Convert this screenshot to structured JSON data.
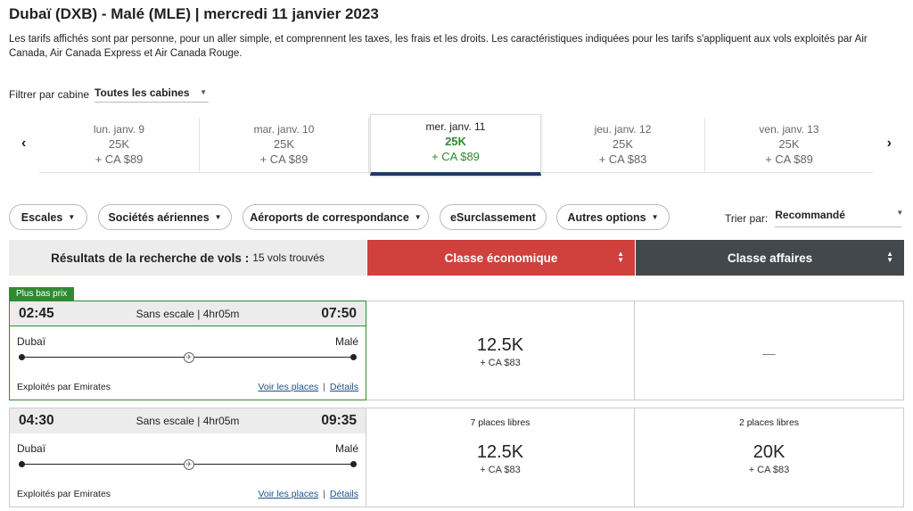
{
  "title": "Dubaï (DXB) - Malé (MLE)  |  mercredi 11 janvier 2023",
  "description": "Les tarifs affichés sont par personne, pour un aller simple, et comprennent les taxes, les frais et les droits. Les caractéristiques indiquées pour les tarifs s'appliquent aux vols exploités par Air Canada, Air Canada Express et Air Canada Rouge.",
  "filter": {
    "label": "Filtrer par cabine",
    "value": "Toutes les cabines"
  },
  "dates": [
    {
      "date": "lun. janv. 9",
      "points": "25K",
      "cash": "+ CA $89"
    },
    {
      "date": "mar. janv. 10",
      "points": "25K",
      "cash": "+ CA $89"
    },
    {
      "date": "mer. janv. 11",
      "points": "25K",
      "cash": "+ CA $89"
    },
    {
      "date": "jeu. janv. 12",
      "points": "25K",
      "cash": "+ CA $83"
    },
    {
      "date": "ven. janv. 13",
      "points": "25K",
      "cash": "+ CA $89"
    }
  ],
  "filters": {
    "stops": "Escales",
    "airlines": "Sociétés aériennes",
    "airports": "Aéroports de correspondance",
    "upgrade": "eSurclassement",
    "more": "Autres options"
  },
  "sort": {
    "label": "Trier par:",
    "value": "Recommandé"
  },
  "results": {
    "label": "Résultats de la recherche de vols :",
    "count": "15 vols trouvés"
  },
  "cabins": {
    "economy": "Classe économique",
    "business": "Classe affaires"
  },
  "badge": "Plus bas prix",
  "flights": [
    {
      "depart": "02:45",
      "arrive": "07:50",
      "duration": "Sans escale | 4hr05m",
      "from": "Dubaï",
      "to": "Malé",
      "operator": "Exploités par Emirates",
      "seats_link": "Voir les places",
      "details_link": "Détails",
      "economy": {
        "seats": "",
        "points": "12.5K",
        "cash": "+ CA $83"
      },
      "business": {
        "dash": "—"
      }
    },
    {
      "depart": "04:30",
      "arrive": "09:35",
      "duration": "Sans escale | 4hr05m",
      "from": "Dubaï",
      "to": "Malé",
      "operator": "Exploités par Emirates",
      "seats_link": "Voir les places",
      "details_link": "Détails",
      "economy": {
        "seats": "7 places libres",
        "points": "12.5K",
        "cash": "+ CA $83"
      },
      "business": {
        "seats": "2 places libres",
        "points": "20K",
        "cash": "+ CA $83"
      }
    }
  ]
}
